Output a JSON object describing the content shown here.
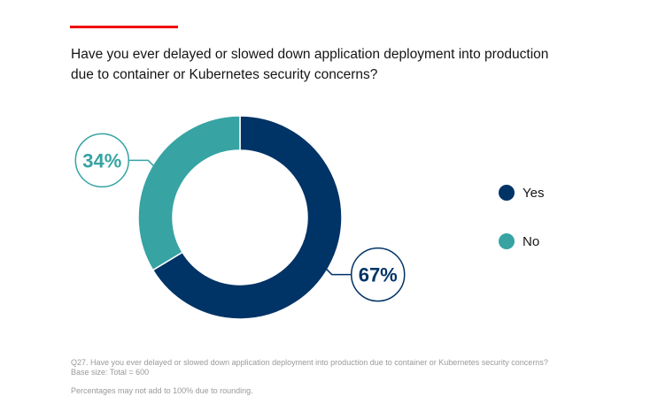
{
  "chart_data": {
    "type": "pie",
    "variant": "donut",
    "title": "Have you ever delayed or slowed down application deployment into production due to container or Kubernetes security concerns?",
    "categories": [
      "Yes",
      "No"
    ],
    "values": [
      67,
      34
    ],
    "labels": [
      "67%",
      "34%"
    ],
    "colors": [
      "#003366",
      "#37a3a3"
    ],
    "legend_placement": "right"
  },
  "footer": {
    "question": "Q27. Have you ever delayed or slowed down application deployment into production due to container or Kubernetes security concerns?",
    "base": "Base size: Total = 600",
    "note": "Percentages may not add to 100% due to rounding."
  },
  "accent_color": "#ee0000"
}
